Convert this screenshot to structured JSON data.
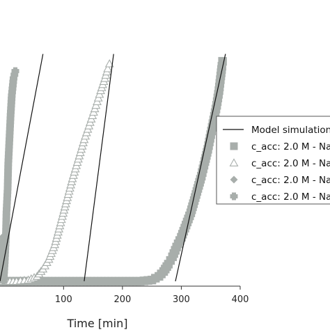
{
  "chart_data": {
    "type": "scatter",
    "title": "",
    "xlabel": "Time [min]",
    "ylabel": "",
    "xlim": [
      -8,
      400
    ],
    "ylim": [
      0,
      1
    ],
    "x_ticks": [
      100,
      200,
      300,
      400
    ],
    "x_tick_labels": [
      "100",
      "200",
      "300",
      "400"
    ],
    "grid": false,
    "legend_position": "right",
    "model_label": "Model simulation",
    "series": [
      {
        "name": "c_acc: 2.0 M - Na",
        "marker": "square",
        "color": "#a8aeab",
        "points": [
          [
            -8,
            0.02
          ],
          [
            20,
            0.02
          ],
          [
            50,
            0.02
          ],
          [
            80,
            0.02
          ],
          [
            110,
            0.02
          ],
          [
            140,
            0.02
          ],
          [
            170,
            0.02
          ],
          [
            200,
            0.02
          ],
          [
            230,
            0.02
          ],
          [
            250,
            0.025
          ],
          [
            262,
            0.04
          ],
          [
            270,
            0.06
          ],
          [
            278,
            0.09
          ],
          [
            285,
            0.12
          ],
          [
            292,
            0.16
          ],
          [
            300,
            0.2
          ],
          [
            308,
            0.25
          ],
          [
            316,
            0.3
          ],
          [
            322,
            0.35
          ],
          [
            328,
            0.4
          ],
          [
            334,
            0.45
          ],
          [
            340,
            0.51
          ],
          [
            345,
            0.56
          ],
          [
            350,
            0.62
          ],
          [
            355,
            0.68
          ],
          [
            360,
            0.74
          ],
          [
            364,
            0.8
          ],
          [
            367,
            0.86
          ],
          [
            369,
            0.9
          ],
          [
            370,
            0.92
          ]
        ]
      },
      {
        "name": "c_acc: 2.0 M - Na",
        "marker": "triangle",
        "color": "#a8aeab",
        "points": [
          [
            -8,
            0.02
          ],
          [
            20,
            0.02
          ],
          [
            40,
            0.025
          ],
          [
            55,
            0.04
          ],
          [
            65,
            0.07
          ],
          [
            75,
            0.11
          ],
          [
            85,
            0.17
          ],
          [
            95,
            0.26
          ],
          [
            105,
            0.35
          ],
          [
            115,
            0.44
          ],
          [
            125,
            0.52
          ],
          [
            135,
            0.6
          ],
          [
            145,
            0.67
          ],
          [
            155,
            0.74
          ],
          [
            163,
            0.8
          ],
          [
            170,
            0.85
          ],
          [
            175,
            0.89
          ],
          [
            178,
            0.91
          ]
        ]
      },
      {
        "name": "c_acc: 2.0 M - Na",
        "marker": "diamond",
        "color": "#a8aeab",
        "points": [
          [
            -8,
            0.05
          ],
          [
            -6,
            0.12
          ],
          [
            -4,
            0.2
          ]
        ]
      },
      {
        "name": "c_acc: 2.0 M - Na",
        "marker": "plus",
        "color": "#a8aeab",
        "points": [
          [
            -2,
            0.02
          ],
          [
            0,
            0.1
          ],
          [
            2,
            0.2
          ],
          [
            3,
            0.3
          ],
          [
            5,
            0.4
          ],
          [
            6,
            0.5
          ],
          [
            8,
            0.6
          ],
          [
            10,
            0.7
          ],
          [
            12,
            0.78
          ],
          [
            15,
            0.85
          ],
          [
            18,
            0.88
          ]
        ]
      }
    ],
    "model_lines": [
      [
        [
          -8,
          0.02
        ],
        [
          65,
          0.95
        ]
      ],
      [
        [
          135,
          0.02
        ],
        [
          185,
          0.95
        ]
      ],
      [
        [
          290,
          0.02
        ],
        [
          375,
          0.95
        ]
      ]
    ]
  }
}
